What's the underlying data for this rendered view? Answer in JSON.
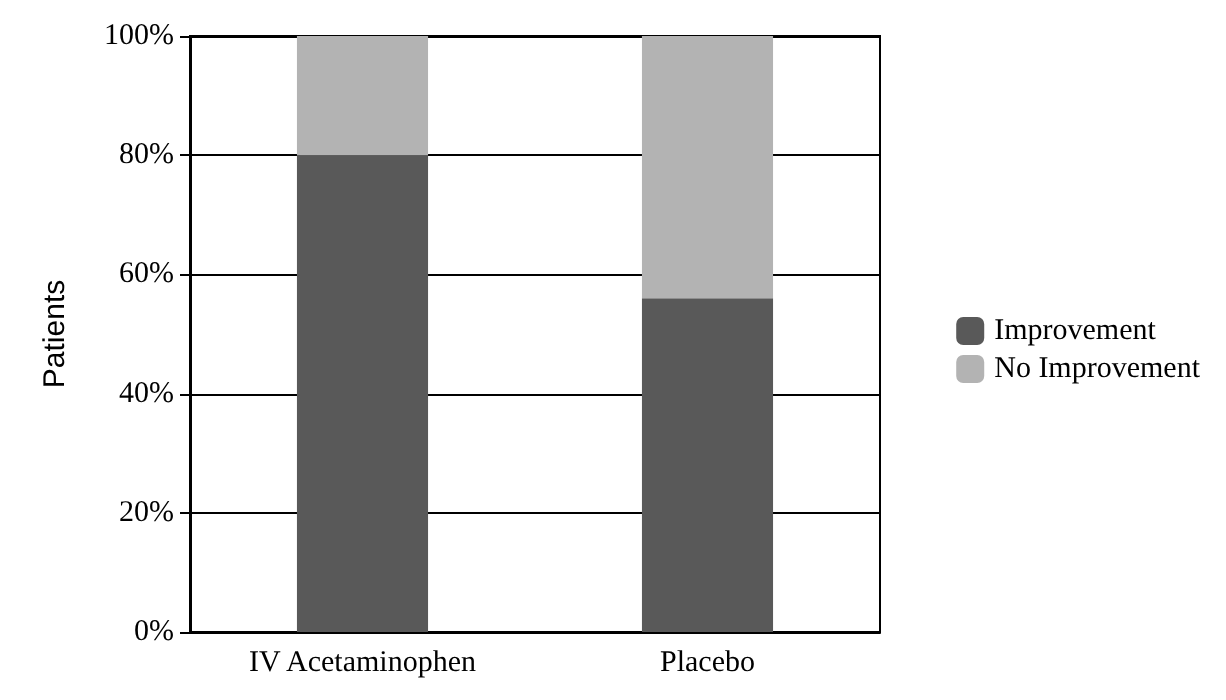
{
  "chart_data": {
    "type": "bar",
    "stacked": true,
    "ylabel": "Patients",
    "categories": [
      "IV Acetaminophen",
      "Placebo"
    ],
    "series": [
      {
        "name": "Improvement",
        "color": "#595959",
        "values": [
          80,
          56
        ]
      },
      {
        "name": "No Improvement",
        "color": "#b3b3b3",
        "values": [
          20,
          44
        ]
      }
    ],
    "ylim": [
      0,
      100
    ],
    "yticks": [
      {
        "value": 0,
        "label": "0%"
      },
      {
        "value": 20,
        "label": "20%"
      },
      {
        "value": 40,
        "label": "40%"
      },
      {
        "value": 60,
        "label": "60%"
      },
      {
        "value": 80,
        "label": "80%"
      },
      {
        "value": 100,
        "label": "100%"
      }
    ],
    "grid": "y",
    "legend": "right"
  }
}
